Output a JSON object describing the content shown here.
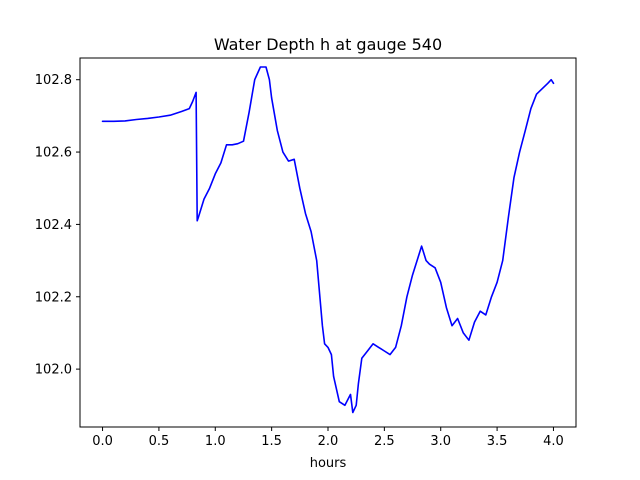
{
  "chart_data": {
    "type": "line",
    "title": "Water Depth h at gauge 540",
    "xlabel": "hours",
    "ylabel": "",
    "xlim": [
      -0.2,
      4.2
    ],
    "ylim": [
      101.84,
      102.86
    ],
    "xticks": [
      0.0,
      0.5,
      1.0,
      1.5,
      2.0,
      2.5,
      3.0,
      3.5,
      4.0
    ],
    "xtick_labels": [
      "0.0",
      "0.5",
      "1.0",
      "1.5",
      "2.0",
      "2.5",
      "3.0",
      "3.5",
      "4.0"
    ],
    "yticks": [
      102.0,
      102.2,
      102.4,
      102.6,
      102.8
    ],
    "ytick_labels": [
      "102.0",
      "102.2",
      "102.4",
      "102.6",
      "102.8"
    ],
    "grid": false,
    "series": [
      {
        "color": "#0000ff",
        "x": [
          0.0,
          0.1,
          0.2,
          0.3,
          0.4,
          0.5,
          0.6,
          0.7,
          0.77,
          0.8,
          0.83,
          0.84,
          0.85,
          0.9,
          0.95,
          1.0,
          1.05,
          1.1,
          1.12,
          1.15,
          1.2,
          1.25,
          1.3,
          1.35,
          1.4,
          1.45,
          1.48,
          1.5,
          1.55,
          1.6,
          1.65,
          1.7,
          1.75,
          1.8,
          1.85,
          1.9,
          1.95,
          1.97,
          2.0,
          2.03,
          2.05,
          2.1,
          2.15,
          2.2,
          2.22,
          2.25,
          2.27,
          2.3,
          2.35,
          2.4,
          2.45,
          2.5,
          2.55,
          2.6,
          2.65,
          2.7,
          2.75,
          2.8,
          2.83,
          2.87,
          2.9,
          2.95,
          3.0,
          3.05,
          3.1,
          3.15,
          3.2,
          3.25,
          3.3,
          3.35,
          3.4,
          3.45,
          3.5,
          3.55,
          3.6,
          3.65,
          3.7,
          3.75,
          3.8,
          3.85,
          3.9,
          3.95,
          3.98,
          4.0
        ],
        "y": [
          102.685,
          102.685,
          102.686,
          102.69,
          102.693,
          102.697,
          102.702,
          102.712,
          102.72,
          102.74,
          102.765,
          102.41,
          102.42,
          102.47,
          102.5,
          102.54,
          102.57,
          102.62,
          102.62,
          102.62,
          102.623,
          102.63,
          102.71,
          102.8,
          102.835,
          102.835,
          102.8,
          102.75,
          102.66,
          102.6,
          102.575,
          102.58,
          102.5,
          102.43,
          102.38,
          102.3,
          102.12,
          102.07,
          102.06,
          102.04,
          101.98,
          101.91,
          101.9,
          101.93,
          101.88,
          101.9,
          101.96,
          102.03,
          102.05,
          102.07,
          102.06,
          102.05,
          102.04,
          102.06,
          102.12,
          102.2,
          102.26,
          102.31,
          102.34,
          102.3,
          102.29,
          102.28,
          102.24,
          102.17,
          102.12,
          102.14,
          102.1,
          102.08,
          102.13,
          102.16,
          102.15,
          102.2,
          102.24,
          102.3,
          102.42,
          102.53,
          102.6,
          102.66,
          102.72,
          102.76,
          102.775,
          102.79,
          102.8,
          102.79
        ]
      }
    ]
  }
}
